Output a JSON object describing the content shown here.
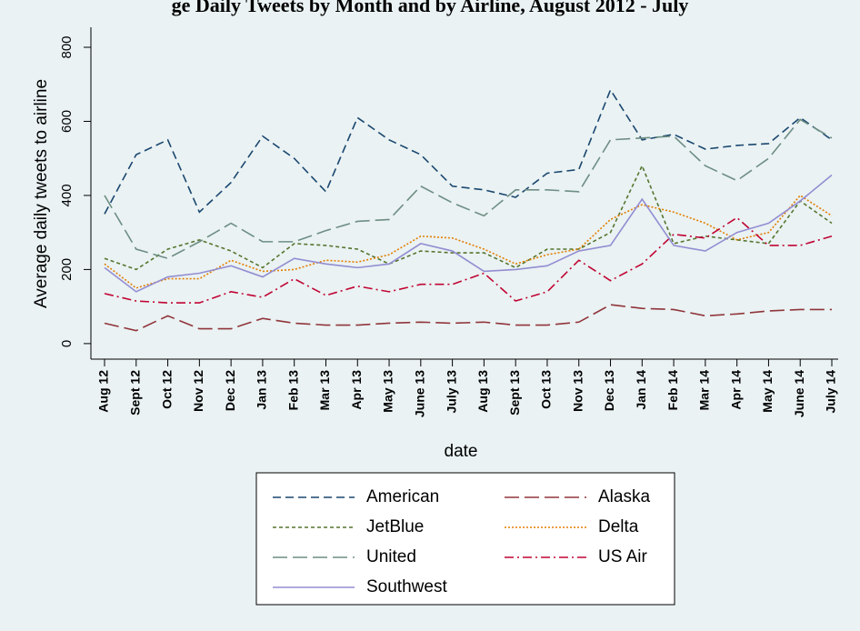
{
  "chart_data": {
    "type": "line",
    "title": "ge Daily Tweets by Month and by Airline, August 2012 - July",
    "y_label": "Average daily tweets to airline",
    "x_label": "date",
    "categories": [
      "Aug 12",
      "Sept 12",
      "Oct 12",
      "Nov 12",
      "Dec 12",
      "Jan 13",
      "Feb 13",
      "Mar 13",
      "Apr 13",
      "May 13",
      "June 13",
      "July 13",
      "Aug 13",
      "Sept 13",
      "Oct 13",
      "Nov 13",
      "Dec 13",
      "Jan 14",
      "Feb 14",
      "Mar 14",
      "Apr 14",
      "May 14",
      "June 14",
      "July 14"
    ],
    "ylim": [
      -42,
      854
    ],
    "yticks": [
      0,
      200,
      400,
      600,
      800
    ],
    "series": [
      {
        "name": "American",
        "color": "#1a476f",
        "style": "dash",
        "values": [
          350,
          510,
          550,
          355,
          435,
          560,
          500,
          410,
          610,
          550,
          510,
          425,
          415,
          395,
          460,
          470,
          685,
          550,
          565,
          525,
          535,
          540,
          610,
          550
        ]
      },
      {
        "name": "Alaska",
        "color": "#90353b",
        "style": "longdash",
        "values": [
          55,
          35,
          75,
          40,
          40,
          68,
          55,
          50,
          50,
          55,
          58,
          55,
          58,
          50,
          50,
          58,
          105,
          95,
          92,
          75,
          80,
          88,
          92,
          92
        ]
      },
      {
        "name": "JetBlue",
        "color": "#55752f",
        "style": "shortdash",
        "values": [
          230,
          200,
          255,
          280,
          250,
          205,
          270,
          265,
          255,
          215,
          250,
          245,
          245,
          205,
          255,
          255,
          300,
          480,
          270,
          290,
          280,
          270,
          385,
          325
        ]
      },
      {
        "name": "Delta",
        "color": "#e37e00",
        "style": "dot",
        "values": [
          215,
          150,
          175,
          175,
          225,
          195,
          200,
          225,
          220,
          240,
          290,
          285,
          255,
          215,
          240,
          255,
          335,
          375,
          355,
          325,
          280,
          300,
          400,
          345
        ]
      },
      {
        "name": "United",
        "color": "#6e8e84",
        "style": "longdash",
        "values": [
          400,
          255,
          230,
          275,
          325,
          275,
          275,
          305,
          330,
          335,
          425,
          380,
          345,
          415,
          415,
          410,
          550,
          555,
          560,
          480,
          440,
          500,
          605,
          555
        ]
      },
      {
        "name": "US Air",
        "color": "#c10534",
        "style": "dashdot",
        "values": [
          135,
          115,
          110,
          110,
          140,
          125,
          175,
          130,
          155,
          140,
          160,
          160,
          190,
          115,
          140,
          225,
          170,
          215,
          295,
          285,
          340,
          265,
          265,
          290
        ]
      },
      {
        "name": "Southwest",
        "color": "#938dd2",
        "style": "solid",
        "values": [
          205,
          140,
          180,
          190,
          210,
          180,
          230,
          215,
          205,
          215,
          270,
          250,
          195,
          200,
          210,
          250,
          265,
          390,
          265,
          250,
          300,
          325,
          385,
          455
        ]
      }
    ]
  }
}
